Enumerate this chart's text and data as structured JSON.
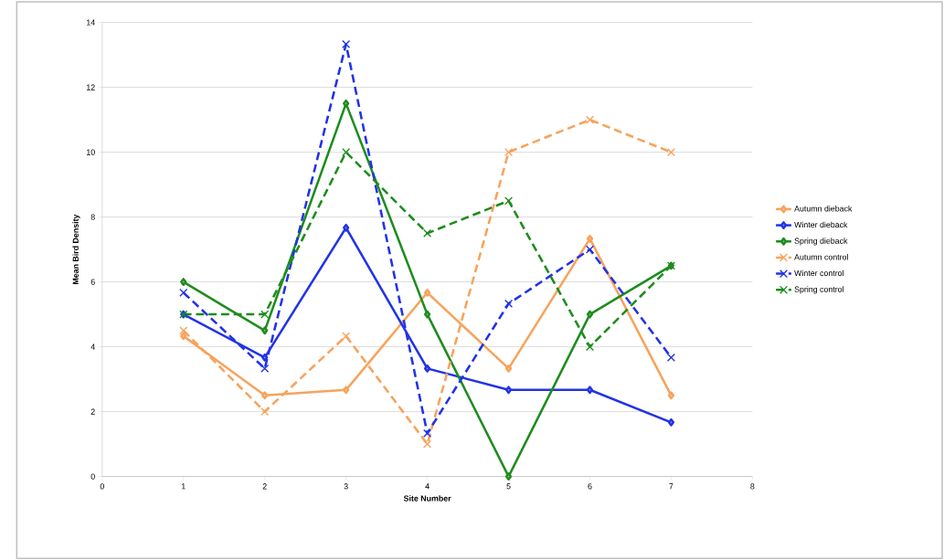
{
  "chart_data": {
    "type": "line",
    "xlabel": "Site Number",
    "ylabel": "Mean Bird Density",
    "x": [
      1,
      2,
      3,
      4,
      5,
      6,
      7
    ],
    "series": [
      {
        "name": "Autumn dieback",
        "color": "#f7a35c",
        "marker": "diamond",
        "line_style": "solid",
        "values": [
          4.33,
          2.5,
          2.67,
          5.67,
          3.33,
          7.33,
          2.5
        ]
      },
      {
        "name": "Winter dieback",
        "color": "#2233e6",
        "marker": "diamond",
        "line_style": "solid",
        "values": [
          5,
          3.67,
          7.67,
          3.33,
          2.67,
          2.67,
          1.67
        ]
      },
      {
        "name": "Spring dieback",
        "color": "#1e8c1e",
        "marker": "diamond",
        "line_style": "solid",
        "values": [
          6,
          4.5,
          11.5,
          5,
          0,
          5,
          6.5
        ]
      },
      {
        "name": "Autumn control",
        "color": "#f7a35c",
        "marker": "cross",
        "line_style": "dashed",
        "values": [
          4.5,
          2,
          4.33,
          1,
          10,
          11,
          10
        ]
      },
      {
        "name": "Winter control",
        "color": "#2233e6",
        "marker": "cross",
        "line_style": "dashed",
        "values": [
          5.67,
          3.33,
          13.33,
          1.33,
          5.33,
          7,
          3.67
        ]
      },
      {
        "name": "Spring control",
        "color": "#1e8c1e",
        "marker": "cross",
        "line_style": "dashed",
        "values": [
          5,
          5,
          10,
          7.5,
          8.5,
          4,
          6.5
        ]
      }
    ],
    "xlim": [
      0,
      8
    ],
    "xticks": [
      0,
      1,
      2,
      3,
      4,
      5,
      6,
      7,
      8
    ],
    "ylim": [
      0,
      14
    ],
    "yticks": [
      0,
      2,
      4,
      6,
      8,
      10,
      12,
      14
    ],
    "grid": "y",
    "legend": "right"
  }
}
